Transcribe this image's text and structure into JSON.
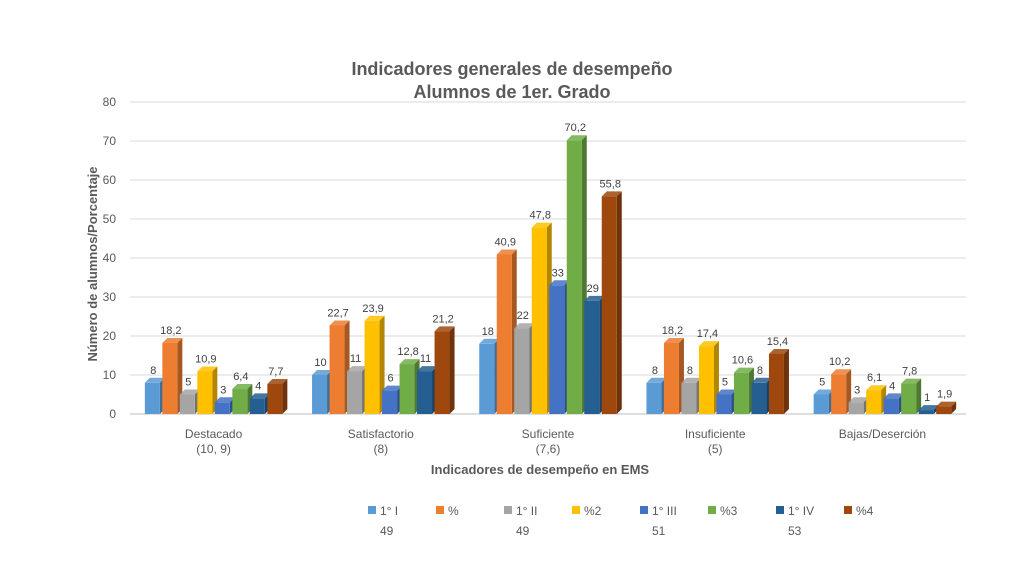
{
  "chart_data": {
    "type": "bar",
    "title": "Indicadores generales de desempeño",
    "subtitle": "Alumnos de 1er. Grado",
    "xlabel": "Indicadores de desempeño en EMS",
    "ylabel": "Número de alumnos/Porcentaje",
    "ylim": [
      0,
      80
    ],
    "yticks": [
      0,
      10,
      20,
      30,
      40,
      50,
      60,
      70,
      80
    ],
    "grid": true,
    "legend_position": "bottom",
    "categories": [
      [
        "Destacado",
        "(10, 9)"
      ],
      [
        "Satisfactorio",
        "(8)"
      ],
      [
        "Suficiente",
        "(7,6)"
      ],
      [
        "Insuficiente",
        "(5)"
      ],
      [
        "Bajas/Deserción",
        ""
      ]
    ],
    "series": [
      {
        "name": "1° I",
        "name_line2": "49",
        "color": "#5B9BD5",
        "values": [
          8,
          10,
          18,
          8,
          5
        ],
        "labels": [
          "8",
          "10",
          "18",
          "8",
          "5"
        ]
      },
      {
        "name": "%",
        "name_line2": "",
        "color": "#ED7D31",
        "values": [
          18.2,
          22.7,
          40.9,
          18.2,
          10.2
        ],
        "labels": [
          "18,2",
          "22,7",
          "40,9",
          "18,2",
          "10,2"
        ]
      },
      {
        "name": "1° II",
        "name_line2": "49",
        "color": "#A5A5A5",
        "values": [
          5,
          11,
          22,
          8,
          3
        ],
        "labels": [
          "5",
          "11",
          "22",
          "8",
          "3"
        ]
      },
      {
        "name": "%2",
        "name_line2": "",
        "color": "#FFC000",
        "values": [
          10.9,
          23.9,
          47.8,
          17.4,
          6.1
        ],
        "labels": [
          "10,9",
          "23,9",
          "47,8",
          "17,4",
          "6,1"
        ]
      },
      {
        "name": "1° III",
        "name_line2": "51",
        "color": "#4472C4",
        "values": [
          3,
          6,
          33,
          5,
          4
        ],
        "labels": [
          "3",
          "6",
          "33",
          "5",
          "4"
        ]
      },
      {
        "name": "%3",
        "name_line2": "",
        "color": "#70AD47",
        "values": [
          6.4,
          12.8,
          70.2,
          10.6,
          7.8
        ],
        "labels": [
          "6,4",
          "12,8",
          "70,2",
          "10,6",
          "7,8"
        ]
      },
      {
        "name": "1° IV",
        "name_line2": "53",
        "color": "#255E91",
        "values": [
          4,
          11,
          29,
          8,
          1
        ],
        "labels": [
          "4",
          "11",
          "29",
          "8",
          "1"
        ]
      },
      {
        "name": "%4",
        "name_line2": "",
        "color": "#9E480E",
        "values": [
          7.7,
          21.2,
          55.8,
          15.4,
          1.9
        ],
        "labels": [
          "7,7",
          "21,2",
          "55,8",
          "15,4",
          "1,9"
        ]
      }
    ]
  }
}
